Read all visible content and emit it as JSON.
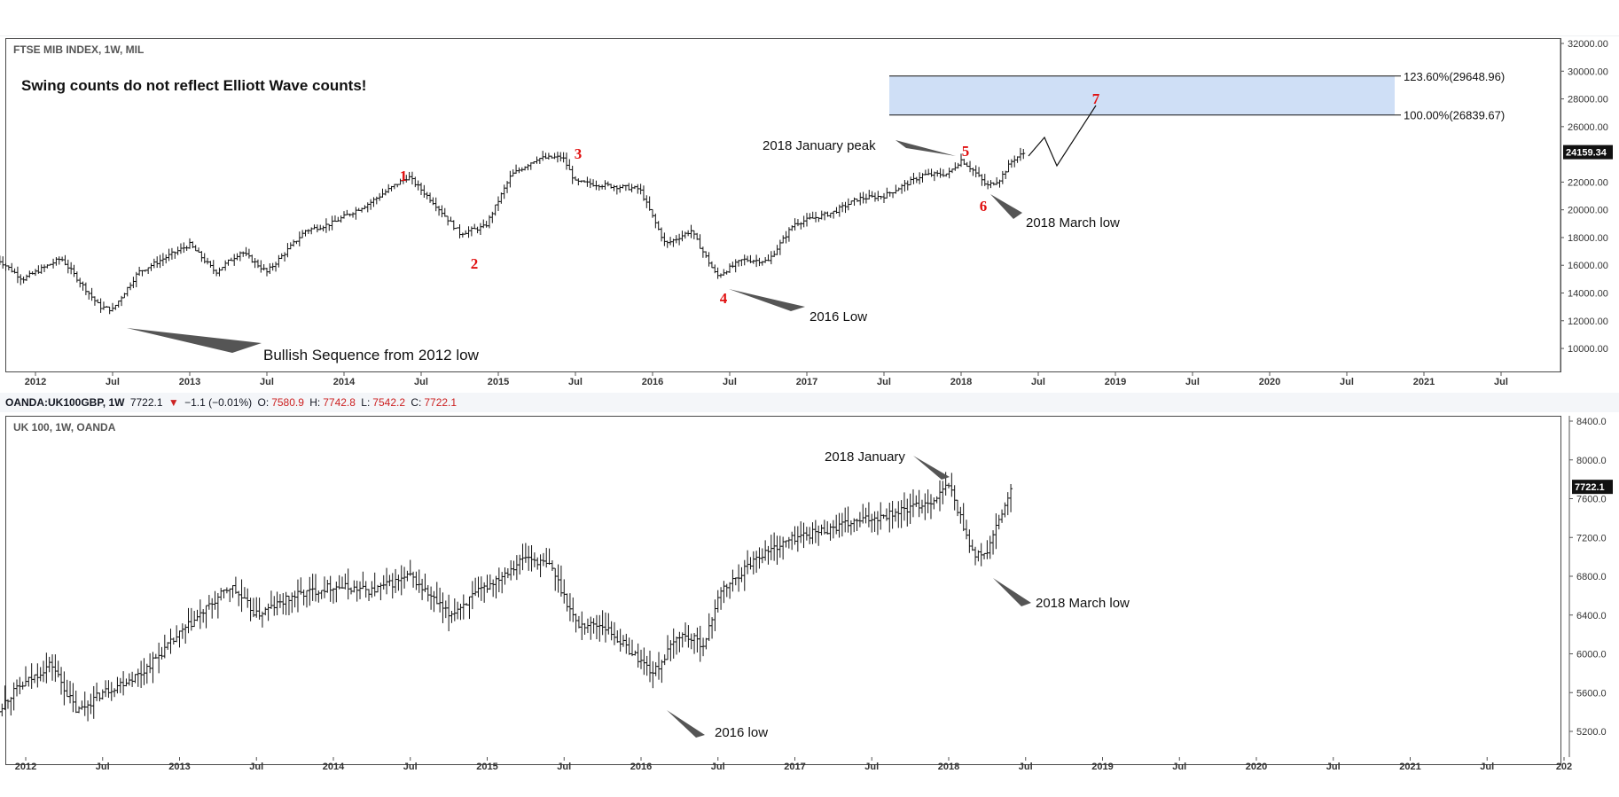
{
  "chart_data": [
    {
      "type": "bar",
      "title": "FTSE MIB INDEX, 1W, MIL",
      "subtitle": "Swing counts do not reflect Elliott Wave counts!",
      "x_ticks": [
        "2012",
        "Jul",
        "2013",
        "Jul",
        "2014",
        "Jul",
        "2015",
        "Jul",
        "2016",
        "Jul",
        "2017",
        "Jul",
        "2018",
        "Jul",
        "2019",
        "Jul",
        "2020",
        "Jul",
        "2021",
        "Jul"
      ],
      "y_ticks": [
        "32000.00",
        "30000.00",
        "28000.00",
        "26000.00",
        "22000.00",
        "20000.00",
        "18000.00",
        "16000.00",
        "14000.00",
        "12000.00",
        "10000.00"
      ],
      "ylim": [
        9000,
        32500
      ],
      "last_price": "24159.34",
      "series": [
        {
          "x": [
            "2011-10",
            "2011-12",
            "2012-03",
            "2012-06",
            "2012-07",
            "2012-09",
            "2013-01",
            "2013-03",
            "2013-05",
            "2013-07",
            "2013-10",
            "2013-12",
            "2014-03",
            "2014-05",
            "2014-06",
            "2014-08",
            "2014-10",
            "2014-12",
            "2015-02",
            "2015-04",
            "2015-06",
            "2015-07",
            "2015-09",
            "2015-12",
            "2016-02",
            "2016-04",
            "2016-06",
            "2016-08",
            "2016-10",
            "2016-12",
            "2017-03",
            "2017-05",
            "2017-07",
            "2017-10",
            "2017-12",
            "2018-01",
            "2018-02",
            "2018-03",
            "2018-04",
            "2018-05",
            "2018-06"
          ],
          "values": [
            16500,
            15000,
            16500,
            13000,
            12800,
            15500,
            17500,
            15500,
            17000,
            15500,
            18500,
            19000,
            20500,
            21800,
            22400,
            20500,
            18300,
            18800,
            22500,
            23700,
            23800,
            22000,
            21800,
            21500,
            17500,
            18500,
            15200,
            16400,
            16300,
            19000,
            19800,
            20800,
            21000,
            22500,
            22600,
            23600,
            22800,
            21700,
            22200,
            23600,
            24159
          ]
        }
      ],
      "swing_labels": [
        "1",
        "2",
        "3",
        "4",
        "5",
        "6",
        "7"
      ],
      "annotations": {
        "bullish": "Bullish Sequence from 2012 low",
        "low2016": "2016 Low",
        "jan_peak": "2018 January peak",
        "march_low": "2018 March low"
      },
      "fib_levels": [
        {
          "label": "123.60%(29648.96)",
          "value": 29648.96
        },
        {
          "label": "100.00%(26839.67)",
          "value": 26839.67
        }
      ],
      "zone_color": "#cfdff6"
    },
    {
      "type": "bar",
      "title": "UK 100, 1W, OANDA",
      "x_ticks": [
        "2012",
        "Jul",
        "2013",
        "Jul",
        "2014",
        "Jul",
        "2015",
        "Jul",
        "2016",
        "Jul",
        "2017",
        "Jul",
        "2018",
        "Jul",
        "2019",
        "Jul",
        "2020",
        "Jul",
        "2021",
        "Jul",
        "202"
      ],
      "y_ticks": [
        "8400.0",
        "8000.0",
        "7600.0",
        "7200.0",
        "6800.0",
        "6400.0",
        "6000.0",
        "5600.0",
        "5200.0"
      ],
      "ylim": [
        5000,
        8500
      ],
      "last_price": "7722.1",
      "series": [
        {
          "x": [
            "2011-10",
            "2011-12",
            "2012-03",
            "2012-05",
            "2012-07",
            "2012-10",
            "2013-01",
            "2013-03",
            "2013-05",
            "2013-07",
            "2013-10",
            "2014-01",
            "2014-04",
            "2014-07",
            "2014-10",
            "2015-01",
            "2015-04",
            "2015-06",
            "2015-08",
            "2015-10",
            "2016-02",
            "2016-04",
            "2016-06",
            "2016-07",
            "2016-10",
            "2017-01",
            "2017-04",
            "2017-07",
            "2017-10",
            "2017-12",
            "2018-01",
            "2018-03",
            "2018-04",
            "2018-05",
            "2018-06"
          ],
          "values": [
            5300,
            5600,
            5900,
            5400,
            5600,
            5800,
            6200,
            6450,
            6700,
            6400,
            6600,
            6700,
            6650,
            6800,
            6400,
            6700,
            7000,
            6900,
            6300,
            6300,
            5800,
            6200,
            6100,
            6600,
            7000,
            7200,
            7300,
            7400,
            7500,
            7600,
            7750,
            7000,
            7050,
            7400,
            7722
          ]
        }
      ],
      "annotations": {
        "jan": "2018 January",
        "march_low": "2018 March low",
        "low2016": "2016 low"
      }
    }
  ],
  "infobar": {
    "symbol": "OANDA:UK100GBP, 1W",
    "price": "7722.1",
    "arrow": "▼",
    "change": "−1.1 (−0.01%)",
    "o_label": "O:",
    "o_val": "7580.9",
    "h_label": "H:",
    "h_val": "7742.8",
    "l_label": "L:",
    "l_val": "7542.2",
    "c_label": "C:",
    "c_val": "7722.1"
  }
}
